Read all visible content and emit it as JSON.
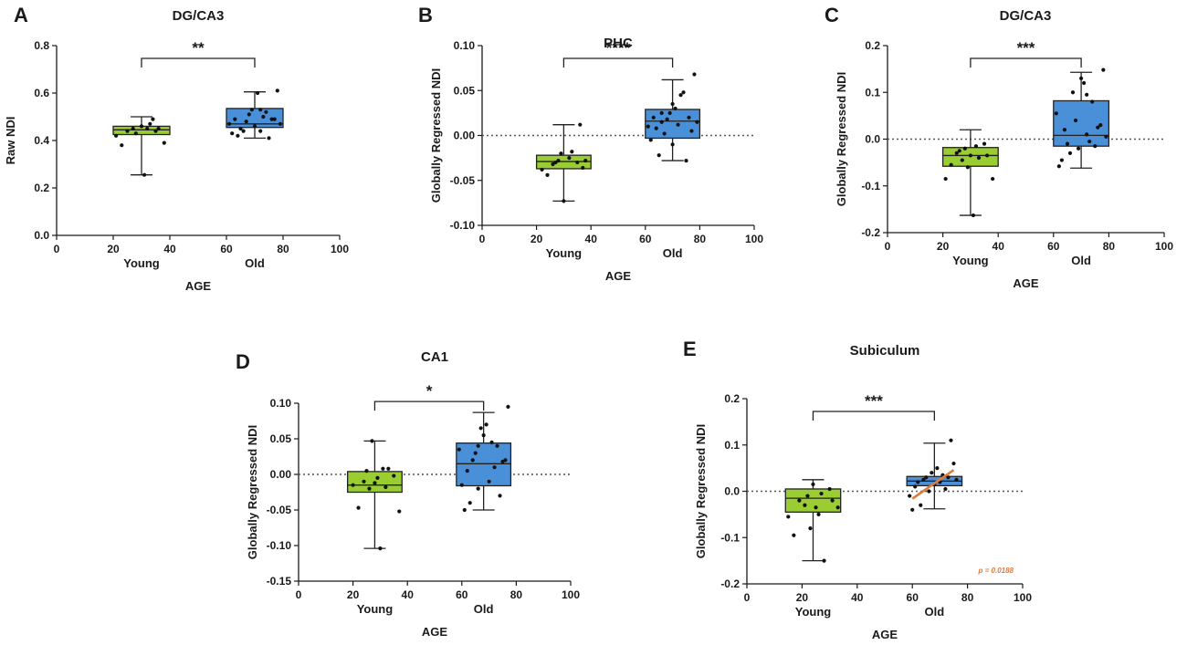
{
  "colors": {
    "young": "#9ACD32",
    "old": "#4A90D9",
    "trend": "#E07B39",
    "axis": "#1a1a1a"
  },
  "chart_data": [
    {
      "panel": "A",
      "type": "box",
      "title": "DG/CA3",
      "xlabel": "AGE",
      "ylabel": "Raw NDI",
      "xlim": [
        0,
        100
      ],
      "xticks": [
        0,
        20,
        40,
        60,
        80,
        100
      ],
      "ylim": [
        0.0,
        0.8
      ],
      "yticks": [
        "0.0",
        "0.2",
        "0.4",
        "0.6",
        "0.8"
      ],
      "zero_line": false,
      "significance": "**",
      "groups": [
        {
          "name": "Young",
          "x_range": [
            20,
            40
          ],
          "whisker_low": 0.255,
          "q1": 0.425,
          "median": 0.445,
          "q3": 0.46,
          "whisker_high": 0.5,
          "points": [
            [
              21,
              0.42
            ],
            [
              23,
              0.38
            ],
            [
              25,
              0.44
            ],
            [
              27,
              0.45
            ],
            [
              28,
              0.43
            ],
            [
              30,
              0.46
            ],
            [
              31,
              0.255
            ],
            [
              32,
              0.45
            ],
            [
              33,
              0.47
            ],
            [
              34,
              0.49
            ],
            [
              35,
              0.44
            ],
            [
              36,
              0.45
            ],
            [
              38,
              0.39
            ]
          ]
        },
        {
          "name": "Old",
          "x_range": [
            60,
            80
          ],
          "whisker_low": 0.41,
          "q1": 0.455,
          "median": 0.47,
          "q3": 0.535,
          "whisker_high": 0.605,
          "points": [
            [
              61,
              0.47
            ],
            [
              62,
              0.43
            ],
            [
              63,
              0.49
            ],
            [
              64,
              0.42
            ],
            [
              65,
              0.45
            ],
            [
              66,
              0.44
            ],
            [
              67,
              0.48
            ],
            [
              68,
              0.51
            ],
            [
              69,
              0.53
            ],
            [
              70,
              0.46
            ],
            [
              71,
              0.6
            ],
            [
              72,
              0.44
            ],
            [
              73,
              0.5
            ],
            [
              74,
              0.52
            ],
            [
              75,
              0.41
            ],
            [
              76,
              0.49
            ],
            [
              77,
              0.49
            ],
            [
              78,
              0.61
            ],
            [
              79,
              0.47
            ],
            [
              72,
              0.53
            ]
          ]
        }
      ]
    },
    {
      "panel": "B",
      "type": "box",
      "title": "PHC",
      "xlabel": "AGE",
      "ylabel": "Globally Regressed NDI",
      "xlim": [
        0,
        100
      ],
      "xticks": [
        0,
        20,
        40,
        60,
        80,
        100
      ],
      "ylim": [
        -0.1,
        0.1
      ],
      "yticks": [
        "-0.10",
        "-0.05",
        "0.00",
        "0.05",
        "0.10"
      ],
      "zero_line": true,
      "significance": "****",
      "groups": [
        {
          "name": "Young",
          "x_range": [
            20,
            40
          ],
          "whisker_low": -0.073,
          "q1": -0.037,
          "median": -0.029,
          "q3": -0.022,
          "whisker_high": 0.012,
          "points": [
            [
              22,
              -0.038
            ],
            [
              24,
              -0.044
            ],
            [
              26,
              -0.032
            ],
            [
              27,
              -0.03
            ],
            [
              28,
              -0.028
            ],
            [
              29,
              -0.02
            ],
            [
              30,
              -0.073
            ],
            [
              32,
              -0.025
            ],
            [
              33,
              -0.018
            ],
            [
              35,
              -0.03
            ],
            [
              36,
              0.012
            ],
            [
              37,
              -0.036
            ],
            [
              38,
              -0.028
            ]
          ]
        },
        {
          "name": "Old",
          "x_range": [
            60,
            80
          ],
          "whisker_low": -0.028,
          "q1": -0.003,
          "median": 0.016,
          "q3": 0.029,
          "whisker_high": 0.062,
          "points": [
            [
              61,
              0.01
            ],
            [
              62,
              -0.005
            ],
            [
              63,
              0.02
            ],
            [
              64,
              0.008
            ],
            [
              65,
              -0.022
            ],
            [
              66,
              0.015
            ],
            [
              67,
              0.002
            ],
            [
              68,
              0.018
            ],
            [
              69,
              0.025
            ],
            [
              70,
              -0.01
            ],
            [
              71,
              0.03
            ],
            [
              72,
              0.012
            ],
            [
              73,
              0.045
            ],
            [
              74,
              0.048
            ],
            [
              75,
              -0.028
            ],
            [
              76,
              0.02
            ],
            [
              77,
              0.005
            ],
            [
              78,
              0.068
            ],
            [
              79,
              0.015
            ],
            [
              70,
              0.035
            ],
            [
              66,
              0.025
            ]
          ]
        }
      ]
    },
    {
      "panel": "C",
      "type": "box",
      "title": "DG/CA3",
      "xlabel": "AGE",
      "ylabel": "Globally Regressed NDI",
      "xlim": [
        0,
        100
      ],
      "xticks": [
        0,
        20,
        40,
        60,
        80,
        100
      ],
      "ylim": [
        -0.2,
        0.2
      ],
      "yticks": [
        "-0.2",
        "-0.1",
        "0.0",
        "0.1",
        "0.2"
      ],
      "zero_line": true,
      "significance": "***",
      "groups": [
        {
          "name": "Young",
          "x_range": [
            20,
            40
          ],
          "whisker_low": -0.163,
          "q1": -0.058,
          "median": -0.035,
          "q3": -0.018,
          "whisker_high": 0.02,
          "points": [
            [
              21,
              -0.085
            ],
            [
              23,
              -0.055
            ],
            [
              25,
              -0.03
            ],
            [
              26,
              -0.025
            ],
            [
              27,
              -0.045
            ],
            [
              28,
              -0.02
            ],
            [
              29,
              -0.06
            ],
            [
              30,
              -0.035
            ],
            [
              31,
              -0.163
            ],
            [
              32,
              -0.015
            ],
            [
              33,
              -0.04
            ],
            [
              35,
              -0.01
            ],
            [
              36,
              -0.035
            ],
            [
              38,
              -0.085
            ]
          ]
        },
        {
          "name": "Old",
          "x_range": [
            60,
            80
          ],
          "whisker_low": -0.062,
          "q1": -0.015,
          "median": 0.008,
          "q3": 0.082,
          "whisker_high": 0.143,
          "points": [
            [
              61,
              0.055
            ],
            [
              62,
              -0.058
            ],
            [
              63,
              -0.045
            ],
            [
              64,
              0.02
            ],
            [
              65,
              -0.01
            ],
            [
              66,
              -0.03
            ],
            [
              67,
              0.1
            ],
            [
              68,
              0.04
            ],
            [
              69,
              -0.02
            ],
            [
              70,
              0.13
            ],
            [
              71,
              0.12
            ],
            [
              72,
              0.01
            ],
            [
              73,
              -0.005
            ],
            [
              74,
              0.08
            ],
            [
              75,
              -0.015
            ],
            [
              76,
              0.025
            ],
            [
              77,
              0.03
            ],
            [
              78,
              0.148
            ],
            [
              79,
              0.005
            ],
            [
              72,
              0.095
            ]
          ]
        }
      ]
    },
    {
      "panel": "D",
      "type": "box",
      "title": "CA1",
      "xlabel": "AGE",
      "ylabel": "Globally Regressed NDI",
      "xlim": [
        0,
        100
      ],
      "xticks": [
        0,
        20,
        40,
        60,
        80,
        100
      ],
      "ylim": [
        -0.15,
        0.1
      ],
      "yticks": [
        "-0.15",
        "-0.10",
        "-0.05",
        "0.00",
        "0.05",
        "0.10"
      ],
      "zero_line": true,
      "significance": "*",
      "groups": [
        {
          "name": "Young",
          "x_range": [
            18,
            38
          ],
          "whisker_low": -0.104,
          "q1": -0.025,
          "median": -0.015,
          "q3": 0.004,
          "whisker_high": 0.047,
          "points": [
            [
              20,
              -0.015
            ],
            [
              22,
              -0.047
            ],
            [
              24,
              -0.01
            ],
            [
              25,
              0.005
            ],
            [
              26,
              -0.02
            ],
            [
              27,
              0.047
            ],
            [
              28,
              -0.012
            ],
            [
              29,
              -0.005
            ],
            [
              30,
              -0.104
            ],
            [
              31,
              0.008
            ],
            [
              32,
              -0.018
            ],
            [
              33,
              0.008
            ],
            [
              35,
              -0.002
            ],
            [
              37,
              -0.052
            ]
          ]
        },
        {
          "name": "Old",
          "x_range": [
            58,
            78
          ],
          "whisker_low": -0.05,
          "q1": -0.016,
          "median": 0.015,
          "q3": 0.044,
          "whisker_high": 0.087,
          "points": [
            [
              59,
              0.035
            ],
            [
              60,
              -0.015
            ],
            [
              61,
              -0.05
            ],
            [
              62,
              0.005
            ],
            [
              63,
              -0.04
            ],
            [
              64,
              0.02
            ],
            [
              65,
              0.03
            ],
            [
              66,
              -0.02
            ],
            [
              67,
              0.065
            ],
            [
              68,
              0.055
            ],
            [
              69,
              0.07
            ],
            [
              70,
              -0.01
            ],
            [
              71,
              0.045
            ],
            [
              72,
              0.01
            ],
            [
              73,
              0.04
            ],
            [
              74,
              -0.03
            ],
            [
              75,
              0.018
            ],
            [
              76,
              0.02
            ],
            [
              77,
              0.095
            ],
            [
              66,
              0.04
            ]
          ]
        }
      ]
    },
    {
      "panel": "E",
      "type": "box",
      "title": "Subiculum",
      "xlabel": "AGE",
      "ylabel": "Globally Regressed NDI",
      "xlim": [
        0,
        100
      ],
      "xticks": [
        0,
        20,
        40,
        60,
        80,
        100
      ],
      "ylim": [
        -0.2,
        0.2
      ],
      "yticks": [
        "-0.2",
        "-0.1",
        "0.0",
        "0.1",
        "0.2"
      ],
      "zero_line": true,
      "significance": "***",
      "groups": [
        {
          "name": "Young",
          "x_range": [
            14,
            34
          ],
          "whisker_low": -0.15,
          "q1": -0.045,
          "median": -0.015,
          "q3": 0.005,
          "whisker_high": 0.025,
          "points": [
            [
              15,
              -0.055
            ],
            [
              17,
              -0.095
            ],
            [
              19,
              -0.02
            ],
            [
              21,
              -0.03
            ],
            [
              22,
              -0.01
            ],
            [
              23,
              -0.08
            ],
            [
              24,
              0.015
            ],
            [
              25,
              -0.035
            ],
            [
              26,
              -0.05
            ],
            [
              27,
              -0.005
            ],
            [
              28,
              -0.15
            ],
            [
              30,
              0.005
            ],
            [
              31,
              -0.02
            ],
            [
              33,
              -0.035
            ]
          ]
        },
        {
          "name": "Old",
          "x_range": [
            58,
            78
          ],
          "whisker_low": -0.038,
          "q1": 0.012,
          "median": 0.022,
          "q3": 0.032,
          "whisker_high": 0.104,
          "points": [
            [
              59,
              -0.01
            ],
            [
              60,
              -0.04
            ],
            [
              61,
              0.01
            ],
            [
              62,
              0.02
            ],
            [
              63,
              -0.03
            ],
            [
              64,
              0.025
            ],
            [
              65,
              0.03
            ],
            [
              66,
              0.0
            ],
            [
              67,
              0.04
            ],
            [
              68,
              0.015
            ],
            [
              69,
              0.05
            ],
            [
              70,
              0.02
            ],
            [
              71,
              0.035
            ],
            [
              72,
              0.005
            ],
            [
              74,
              0.11
            ],
            [
              75,
              0.06
            ],
            [
              76,
              0.025
            ],
            [
              73,
              0.03
            ]
          ]
        }
      ],
      "trend_line": {
        "x": [
          60,
          75
        ],
        "y": [
          -0.016,
          0.046
        ]
      },
      "annotation": "p = 0.0188"
    }
  ]
}
